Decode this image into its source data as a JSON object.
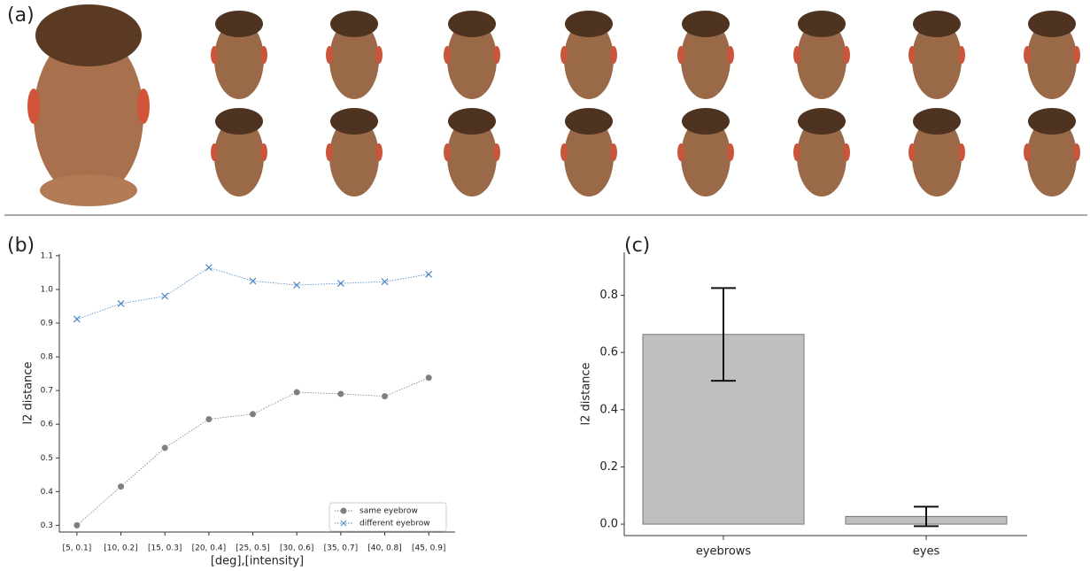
{
  "panel_a": {
    "label": "(a)"
  },
  "chart_data": [
    {
      "type": "line",
      "panel_label": "(b)",
      "x_label": "[deg],[intensity]",
      "y_label": "l2 distance",
      "categories": [
        "[5, 0.1]",
        "[10, 0.2]",
        "[15, 0.3]",
        "[20, 0.4]",
        "[25, 0.5]",
        "[30, 0.6]",
        "[35, 0.7]",
        "[40, 0.8]",
        "[45, 0.9]"
      ],
      "series": [
        {
          "name": "same eyebrow",
          "color": "#808080",
          "marker": "circle",
          "values": [
            0.3,
            0.415,
            0.53,
            0.615,
            0.63,
            0.695,
            0.69,
            0.683,
            0.738
          ]
        },
        {
          "name": "different eyebrow",
          "color": "#4a86c5",
          "marker": "x",
          "values": [
            0.912,
            0.958,
            0.98,
            1.065,
            1.025,
            1.013,
            1.018,
            1.023,
            1.045
          ]
        }
      ],
      "ylim": [
        0.28,
        1.105
      ],
      "yticks": [
        0.3,
        0.4,
        0.5,
        0.6,
        0.7,
        0.8,
        0.9,
        {
          "value": 1,
          "label": "1.0"
        },
        1.1
      ],
      "legend": "lower right"
    },
    {
      "type": "bar",
      "panel_label": "(c)",
      "y_label": "l2 distance",
      "categories": [
        "eyebrows",
        "eyes"
      ],
      "values": [
        0.663,
        0.027
      ],
      "errors": [
        0.162,
        0.034
      ],
      "color": "#bfbfbf",
      "ylim": [
        -0.04,
        0.95
      ],
      "yticks": [
        {
          "value": 0,
          "label": "0.0"
        },
        0.2,
        0.4,
        0.6,
        0.8
      ]
    }
  ]
}
